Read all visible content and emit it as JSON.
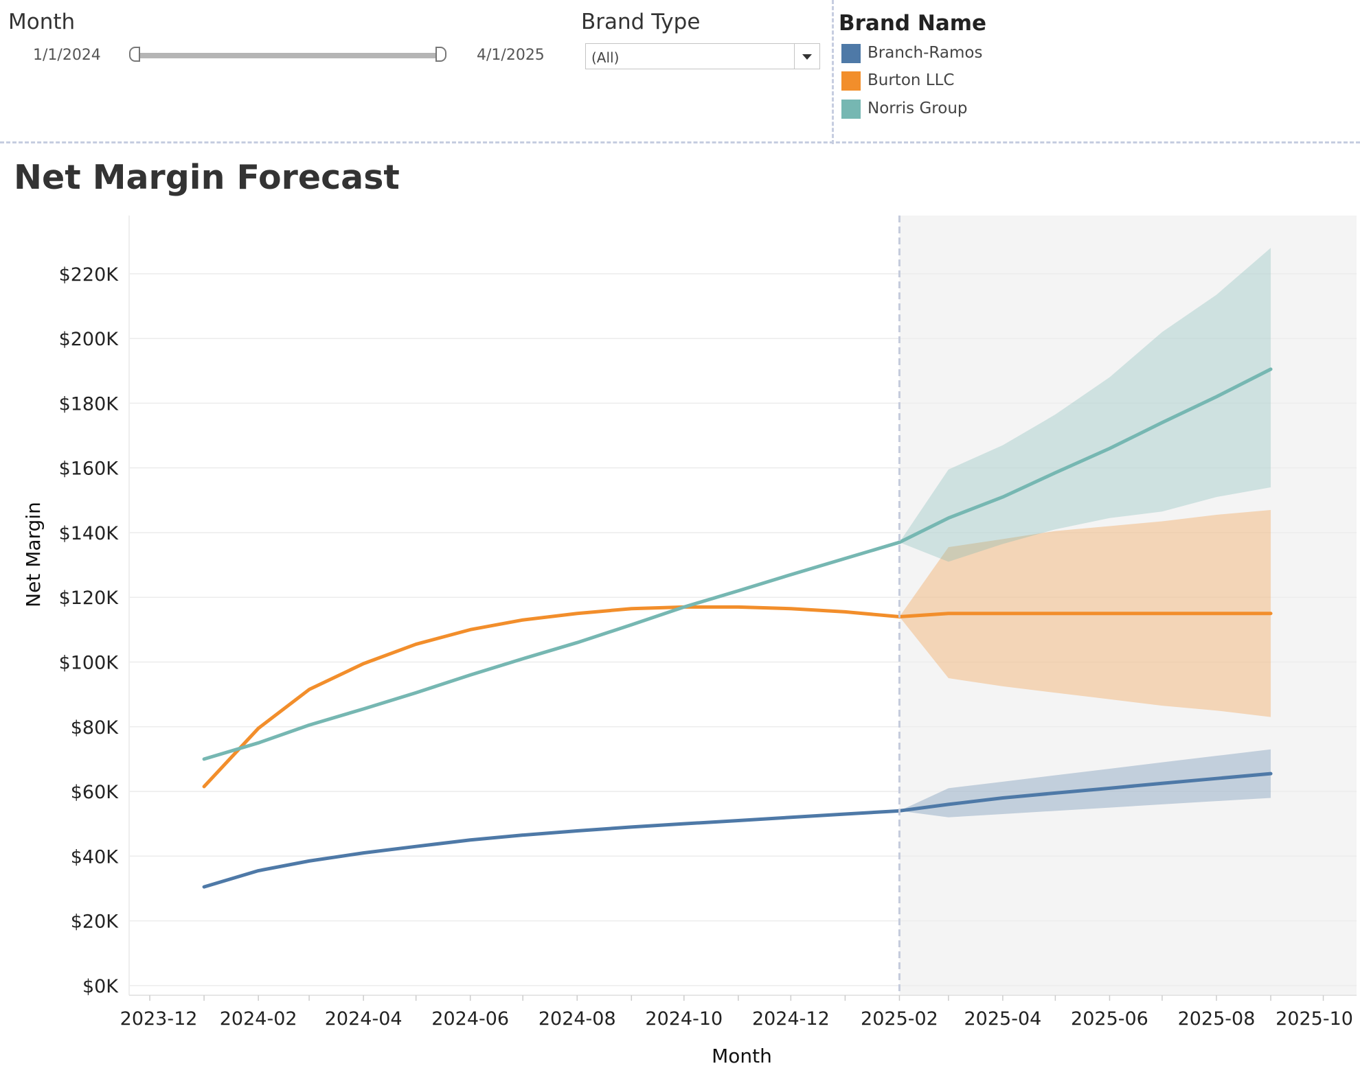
{
  "filters": {
    "month": {
      "title": "Month",
      "start_label": "1/1/2024",
      "end_label": "4/1/2025"
    },
    "brand_type": {
      "title": "Brand Type",
      "value": "(All)"
    }
  },
  "legend": {
    "title": "Brand Name",
    "items": [
      {
        "label": "Branch-Ramos",
        "color": "#4e79a7"
      },
      {
        "label": "Burton LLC",
        "color": "#f28e2b"
      },
      {
        "label": "Norris Group",
        "color": "#76b7b2"
      }
    ]
  },
  "chart_data": {
    "type": "line",
    "title": "Net Margin Forecast",
    "xlabel": "Month",
    "ylabel": "Net Margin",
    "y_ticks": [
      "$0K",
      "$20K",
      "$40K",
      "$60K",
      "$80K",
      "$100K",
      "$120K",
      "$140K",
      "$160K",
      "$180K",
      "$200K",
      "$220K"
    ],
    "x_ticks": [
      "2023-12",
      "2024-02",
      "2024-04",
      "2024-06",
      "2024-08",
      "2024-10",
      "2024-12",
      "2025-02",
      "2025-04",
      "2025-06",
      "2025-08",
      "2025-10"
    ],
    "ylim": [
      -3000,
      238000
    ],
    "xlim": [
      "2023-11-20",
      "2025-10-20"
    ],
    "forecast_start": "2025-02",
    "grid": true,
    "series": [
      {
        "name": "Branch-Ramos",
        "color": "#4e79a7",
        "actual": {
          "x": [
            "2024-01",
            "2024-02",
            "2024-03",
            "2024-04",
            "2024-05",
            "2024-06",
            "2024-07",
            "2024-08",
            "2024-09",
            "2024-10",
            "2024-11",
            "2024-12",
            "2025-01",
            "2025-02"
          ],
          "y": [
            30500,
            35500,
            38500,
            41000,
            43000,
            45000,
            46500,
            47800,
            49000,
            50000,
            51000,
            52000,
            53000,
            54000
          ]
        },
        "forecast": {
          "x": [
            "2025-02",
            "2025-03",
            "2025-04",
            "2025-05",
            "2025-06",
            "2025-07",
            "2025-08",
            "2025-09"
          ],
          "y": [
            54000,
            56000,
            58000,
            59500,
            61000,
            62500,
            64000,
            65500
          ],
          "lower": [
            54000,
            52000,
            53000,
            54000,
            55000,
            56000,
            57000,
            58000
          ],
          "upper": [
            54000,
            61000,
            63000,
            65000,
            67000,
            69000,
            71000,
            73000
          ]
        }
      },
      {
        "name": "Burton LLC",
        "color": "#f28e2b",
        "actual": {
          "x": [
            "2024-01",
            "2024-02",
            "2024-03",
            "2024-04",
            "2024-05",
            "2024-06",
            "2024-07",
            "2024-08",
            "2024-09",
            "2024-10",
            "2024-11",
            "2024-12",
            "2025-01",
            "2025-02"
          ],
          "y": [
            61500,
            79500,
            91500,
            99500,
            105500,
            110000,
            113000,
            115000,
            116500,
            117000,
            117000,
            116500,
            115500,
            114000
          ]
        },
        "forecast": {
          "x": [
            "2025-02",
            "2025-03",
            "2025-04",
            "2025-05",
            "2025-06",
            "2025-07",
            "2025-08",
            "2025-09"
          ],
          "y": [
            114000,
            115000,
            115000,
            115000,
            115000,
            115000,
            115000,
            115000
          ],
          "lower": [
            114000,
            95000,
            92500,
            90500,
            88500,
            86500,
            85000,
            83000
          ],
          "upper": [
            114000,
            135500,
            138000,
            140500,
            142000,
            143500,
            145500,
            147000
          ]
        }
      },
      {
        "name": "Norris Group",
        "color": "#76b7b2",
        "actual": {
          "x": [
            "2024-01",
            "2024-02",
            "2024-03",
            "2024-04",
            "2024-05",
            "2024-06",
            "2024-07",
            "2024-08",
            "2024-09",
            "2024-10",
            "2024-11",
            "2024-12",
            "2025-01",
            "2025-02"
          ],
          "y": [
            70000,
            75000,
            80500,
            85500,
            90500,
            96000,
            101000,
            106000,
            111500,
            117000,
            122000,
            127000,
            132000,
            137000
          ]
        },
        "forecast": {
          "x": [
            "2025-02",
            "2025-03",
            "2025-04",
            "2025-05",
            "2025-06",
            "2025-07",
            "2025-08",
            "2025-09"
          ],
          "y": [
            137000,
            144500,
            151000,
            158500,
            166000,
            174000,
            182000,
            190500
          ],
          "lower": [
            137000,
            131000,
            136500,
            141000,
            144500,
            146500,
            151000,
            154000
          ],
          "upper": [
            137000,
            159500,
            167000,
            176500,
            188000,
            202000,
            213500,
            228000
          ]
        }
      }
    ]
  }
}
